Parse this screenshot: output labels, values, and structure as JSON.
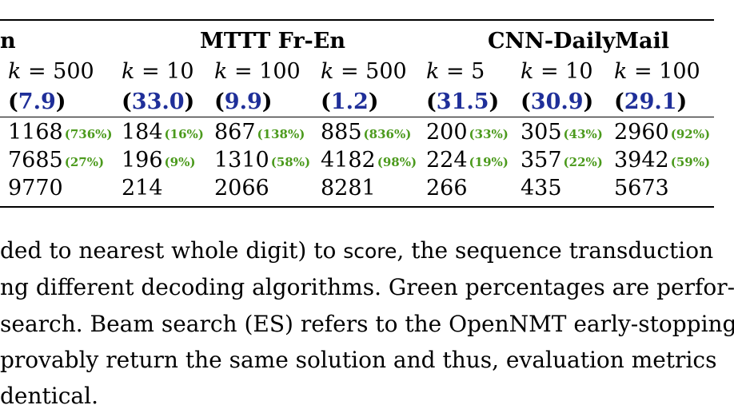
{
  "table": {
    "group_headers": {
      "left_fragment": "n",
      "mttt": "MTTT Fr-En",
      "cnn": "CNN-DailyMail"
    },
    "k_prefix": "k",
    "k_values": [
      "500",
      "10",
      "100",
      "500",
      "5",
      "10",
      "100"
    ],
    "scores": [
      "7.9",
      "33.0",
      "9.9",
      "1.2",
      "31.5",
      "30.9",
      "29.1"
    ],
    "rows": [
      {
        "cells": [
          {
            "value": "1168",
            "pct": "(736%)"
          },
          {
            "value": "184",
            "pct": "(16%)"
          },
          {
            "value": "867",
            "pct": "(138%)"
          },
          {
            "value": "885",
            "pct": "(836%)"
          },
          {
            "value": "200",
            "pct": "(33%)"
          },
          {
            "value": "305",
            "pct": "(43%)"
          },
          {
            "value": "2960",
            "pct": "(92%)"
          }
        ]
      },
      {
        "cells": [
          {
            "value": "7685",
            "pct": "(27%)"
          },
          {
            "value": "196",
            "pct": "(9%)"
          },
          {
            "value": "1310",
            "pct": "(58%)"
          },
          {
            "value": "4182",
            "pct": "(98%)"
          },
          {
            "value": "224",
            "pct": "(19%)"
          },
          {
            "value": "357",
            "pct": "(22%)"
          },
          {
            "value": "3942",
            "pct": "(59%)"
          }
        ]
      },
      {
        "cells": [
          {
            "value": "9770",
            "pct": ""
          },
          {
            "value": "214",
            "pct": ""
          },
          {
            "value": "2066",
            "pct": ""
          },
          {
            "value": "8281",
            "pct": ""
          },
          {
            "value": "266",
            "pct": ""
          },
          {
            "value": "435",
            "pct": ""
          },
          {
            "value": "5673",
            "pct": ""
          }
        ]
      }
    ]
  },
  "caption": {
    "line1_a": "ded to nearest whole digit) to ",
    "line1_score": "score",
    "line1_b": ", the sequence transduction",
    "line2": "ng different decoding algorithms. Green percentages are perfor-",
    "line3": "search. Beam search (ES) refers to the OpenNMT early-stopping",
    "line4": " provably return the same solution and thus, evaluation metrics",
    "line5": "dentical."
  },
  "colors": {
    "score_blue": "#1f2f99",
    "pct_green": "#4b9a1c"
  }
}
